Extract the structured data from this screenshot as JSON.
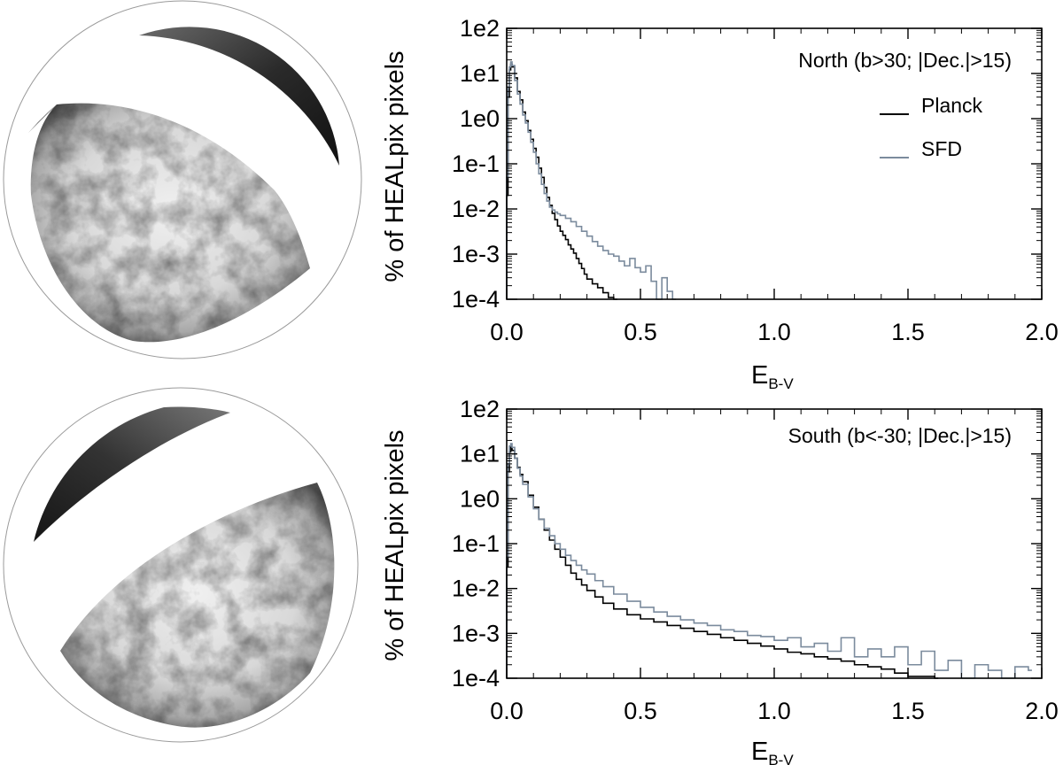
{
  "colors": {
    "planck": "#000000",
    "sfd": "#7b8b9d",
    "axis": "#000000",
    "map_ring": "#9a9a9a"
  },
  "maps": [
    {
      "name": "north-polar-cap-map",
      "region": "North"
    },
    {
      "name": "south-polar-cap-map",
      "region": "South"
    }
  ],
  "chart_data": [
    {
      "type": "line",
      "step": true,
      "annotation": "North (b>30; |Dec.|>15)",
      "xlabel": "E",
      "xlabel_sub": "B-V",
      "ylabel": "% of HEALpix pixels",
      "xlim": [
        0.0,
        2.0
      ],
      "ylim": [
        0.0001,
        100
      ],
      "yscale": "log",
      "x_ticks": [
        "0.0",
        "0.5",
        "1.0",
        "1.5",
        "2.0"
      ],
      "x_tick_values": [
        0.0,
        0.5,
        1.0,
        1.5,
        2.0
      ],
      "y_ticks": [
        "1e2",
        "1e1",
        "1e0",
        "1e-1",
        "1e-2",
        "1e-3",
        "1e-4"
      ],
      "y_tick_values": [
        100,
        10,
        1,
        0.1,
        0.01,
        0.001,
        0.0001
      ],
      "legend": {
        "position": "top-right",
        "entries": [
          "Planck",
          "SFD"
        ]
      },
      "series": [
        {
          "name": "Planck",
          "x": [
            0.0,
            0.005,
            0.01,
            0.015,
            0.02,
            0.03,
            0.04,
            0.05,
            0.06,
            0.07,
            0.08,
            0.09,
            0.1,
            0.11,
            0.12,
            0.13,
            0.14,
            0.15,
            0.16,
            0.17,
            0.18,
            0.19,
            0.2,
            0.21,
            0.22,
            0.23,
            0.24,
            0.25,
            0.26,
            0.27,
            0.28,
            0.29,
            0.3,
            0.32,
            0.34,
            0.36,
            0.38,
            0.4
          ],
          "y": [
            0.02,
            3,
            12,
            16,
            14,
            8,
            4,
            2.6,
            1.4,
            0.9,
            0.55,
            0.35,
            0.22,
            0.14,
            0.08,
            0.05,
            0.03,
            0.018,
            0.012,
            0.008,
            0.0058,
            0.0042,
            0.0032,
            0.0026,
            0.0021,
            0.0016,
            0.0013,
            0.00105,
            0.0008,
            0.00062,
            0.00048,
            0.00036,
            0.00028,
            0.00022,
            0.00018,
            0.00014,
            0.00011,
            0.0001
          ]
        },
        {
          "name": "SFD",
          "x": [
            0.0,
            0.005,
            0.01,
            0.015,
            0.02,
            0.03,
            0.04,
            0.05,
            0.06,
            0.07,
            0.08,
            0.09,
            0.1,
            0.11,
            0.12,
            0.13,
            0.14,
            0.15,
            0.16,
            0.17,
            0.18,
            0.19,
            0.2,
            0.22,
            0.24,
            0.26,
            0.28,
            0.3,
            0.32,
            0.34,
            0.36,
            0.38,
            0.4,
            0.42,
            0.44,
            0.46,
            0.48,
            0.5,
            0.52,
            0.54,
            0.56,
            0.58,
            0.6,
            0.62
          ],
          "y": [
            0.05,
            5,
            14,
            18,
            15,
            7,
            3.5,
            2.1,
            1.2,
            0.8,
            0.5,
            0.3,
            0.18,
            0.1,
            0.06,
            0.035,
            0.022,
            0.015,
            0.011,
            0.0095,
            0.0085,
            0.0078,
            0.0072,
            0.0062,
            0.0052,
            0.0041,
            0.0032,
            0.0025,
            0.0019,
            0.0015,
            0.0012,
            0.001,
            0.0009,
            0.0007,
            0.00055,
            0.0008,
            0.0005,
            0.0004,
            0.00055,
            0.00025,
            0.0001,
            0.0003,
            0.00015,
            0.0001
          ]
        }
      ]
    },
    {
      "type": "line",
      "step": true,
      "annotation": "South (b<-30; |Dec.|>15)",
      "xlabel": "E",
      "xlabel_sub": "B-V",
      "ylabel": "% of HEALpix pixels",
      "xlim": [
        0.0,
        2.0
      ],
      "ylim": [
        0.0001,
        100
      ],
      "yscale": "log",
      "x_ticks": [
        "0.0",
        "0.5",
        "1.0",
        "1.5",
        "2.0"
      ],
      "x_tick_values": [
        0.0,
        0.5,
        1.0,
        1.5,
        2.0
      ],
      "y_ticks": [
        "1e2",
        "1e1",
        "1e0",
        "1e-1",
        "1e-2",
        "1e-3",
        "1e-4"
      ],
      "y_tick_values": [
        100,
        10,
        1,
        0.1,
        0.01,
        0.001,
        0.0001
      ],
      "series": [
        {
          "name": "Planck",
          "x": [
            0.0,
            0.005,
            0.01,
            0.015,
            0.02,
            0.03,
            0.04,
            0.05,
            0.06,
            0.08,
            0.1,
            0.12,
            0.14,
            0.16,
            0.18,
            0.2,
            0.22,
            0.24,
            0.26,
            0.28,
            0.3,
            0.33,
            0.36,
            0.4,
            0.45,
            0.5,
            0.55,
            0.6,
            0.65,
            0.7,
            0.75,
            0.8,
            0.85,
            0.9,
            0.95,
            1.0,
            1.05,
            1.1,
            1.15,
            1.2,
            1.25,
            1.3,
            1.35,
            1.4,
            1.45,
            1.5,
            1.6
          ],
          "y": [
            0.03,
            4,
            11,
            14,
            12,
            8,
            5,
            3.5,
            2.4,
            1.2,
            0.65,
            0.35,
            0.2,
            0.12,
            0.075,
            0.05,
            0.033,
            0.022,
            0.016,
            0.012,
            0.009,
            0.0065,
            0.0047,
            0.0035,
            0.0026,
            0.0021,
            0.0018,
            0.0015,
            0.0013,
            0.0011,
            0.00095,
            0.0008,
            0.0007,
            0.0006,
            0.00052,
            0.00045,
            0.00038,
            0.00035,
            0.0003,
            0.00027,
            0.00024,
            0.0002,
            0.00018,
            0.00016,
            0.00013,
            0.00011,
            0.0001
          ]
        },
        {
          "name": "SFD",
          "x": [
            0.0,
            0.005,
            0.01,
            0.015,
            0.02,
            0.03,
            0.04,
            0.05,
            0.06,
            0.08,
            0.1,
            0.12,
            0.14,
            0.16,
            0.18,
            0.2,
            0.22,
            0.24,
            0.26,
            0.28,
            0.3,
            0.33,
            0.36,
            0.4,
            0.45,
            0.5,
            0.55,
            0.6,
            0.65,
            0.7,
            0.75,
            0.8,
            0.85,
            0.9,
            0.95,
            1.0,
            1.05,
            1.1,
            1.15,
            1.2,
            1.25,
            1.3,
            1.35,
            1.4,
            1.45,
            1.5,
            1.55,
            1.6,
            1.65,
            1.7,
            1.75,
            1.8,
            1.85,
            1.9,
            1.95
          ],
          "y": [
            0.05,
            6,
            15,
            17,
            14,
            8,
            4.8,
            3.2,
            2.1,
            1.1,
            0.6,
            0.35,
            0.22,
            0.15,
            0.1,
            0.075,
            0.055,
            0.042,
            0.033,
            0.026,
            0.021,
            0.015,
            0.011,
            0.0075,
            0.0052,
            0.0038,
            0.003,
            0.0024,
            0.002,
            0.0017,
            0.0015,
            0.0012,
            0.0011,
            0.0009,
            0.00085,
            0.0007,
            0.0008,
            0.0005,
            0.0006,
            0.0004,
            0.0008,
            0.0003,
            0.00045,
            0.0003,
            0.0005,
            0.0002,
            0.0004,
            0.00015,
            0.00025,
            0.0001,
            0.0002,
            0.00015,
            0.0001,
            0.00018,
            0.00015
          ]
        }
      ]
    }
  ]
}
